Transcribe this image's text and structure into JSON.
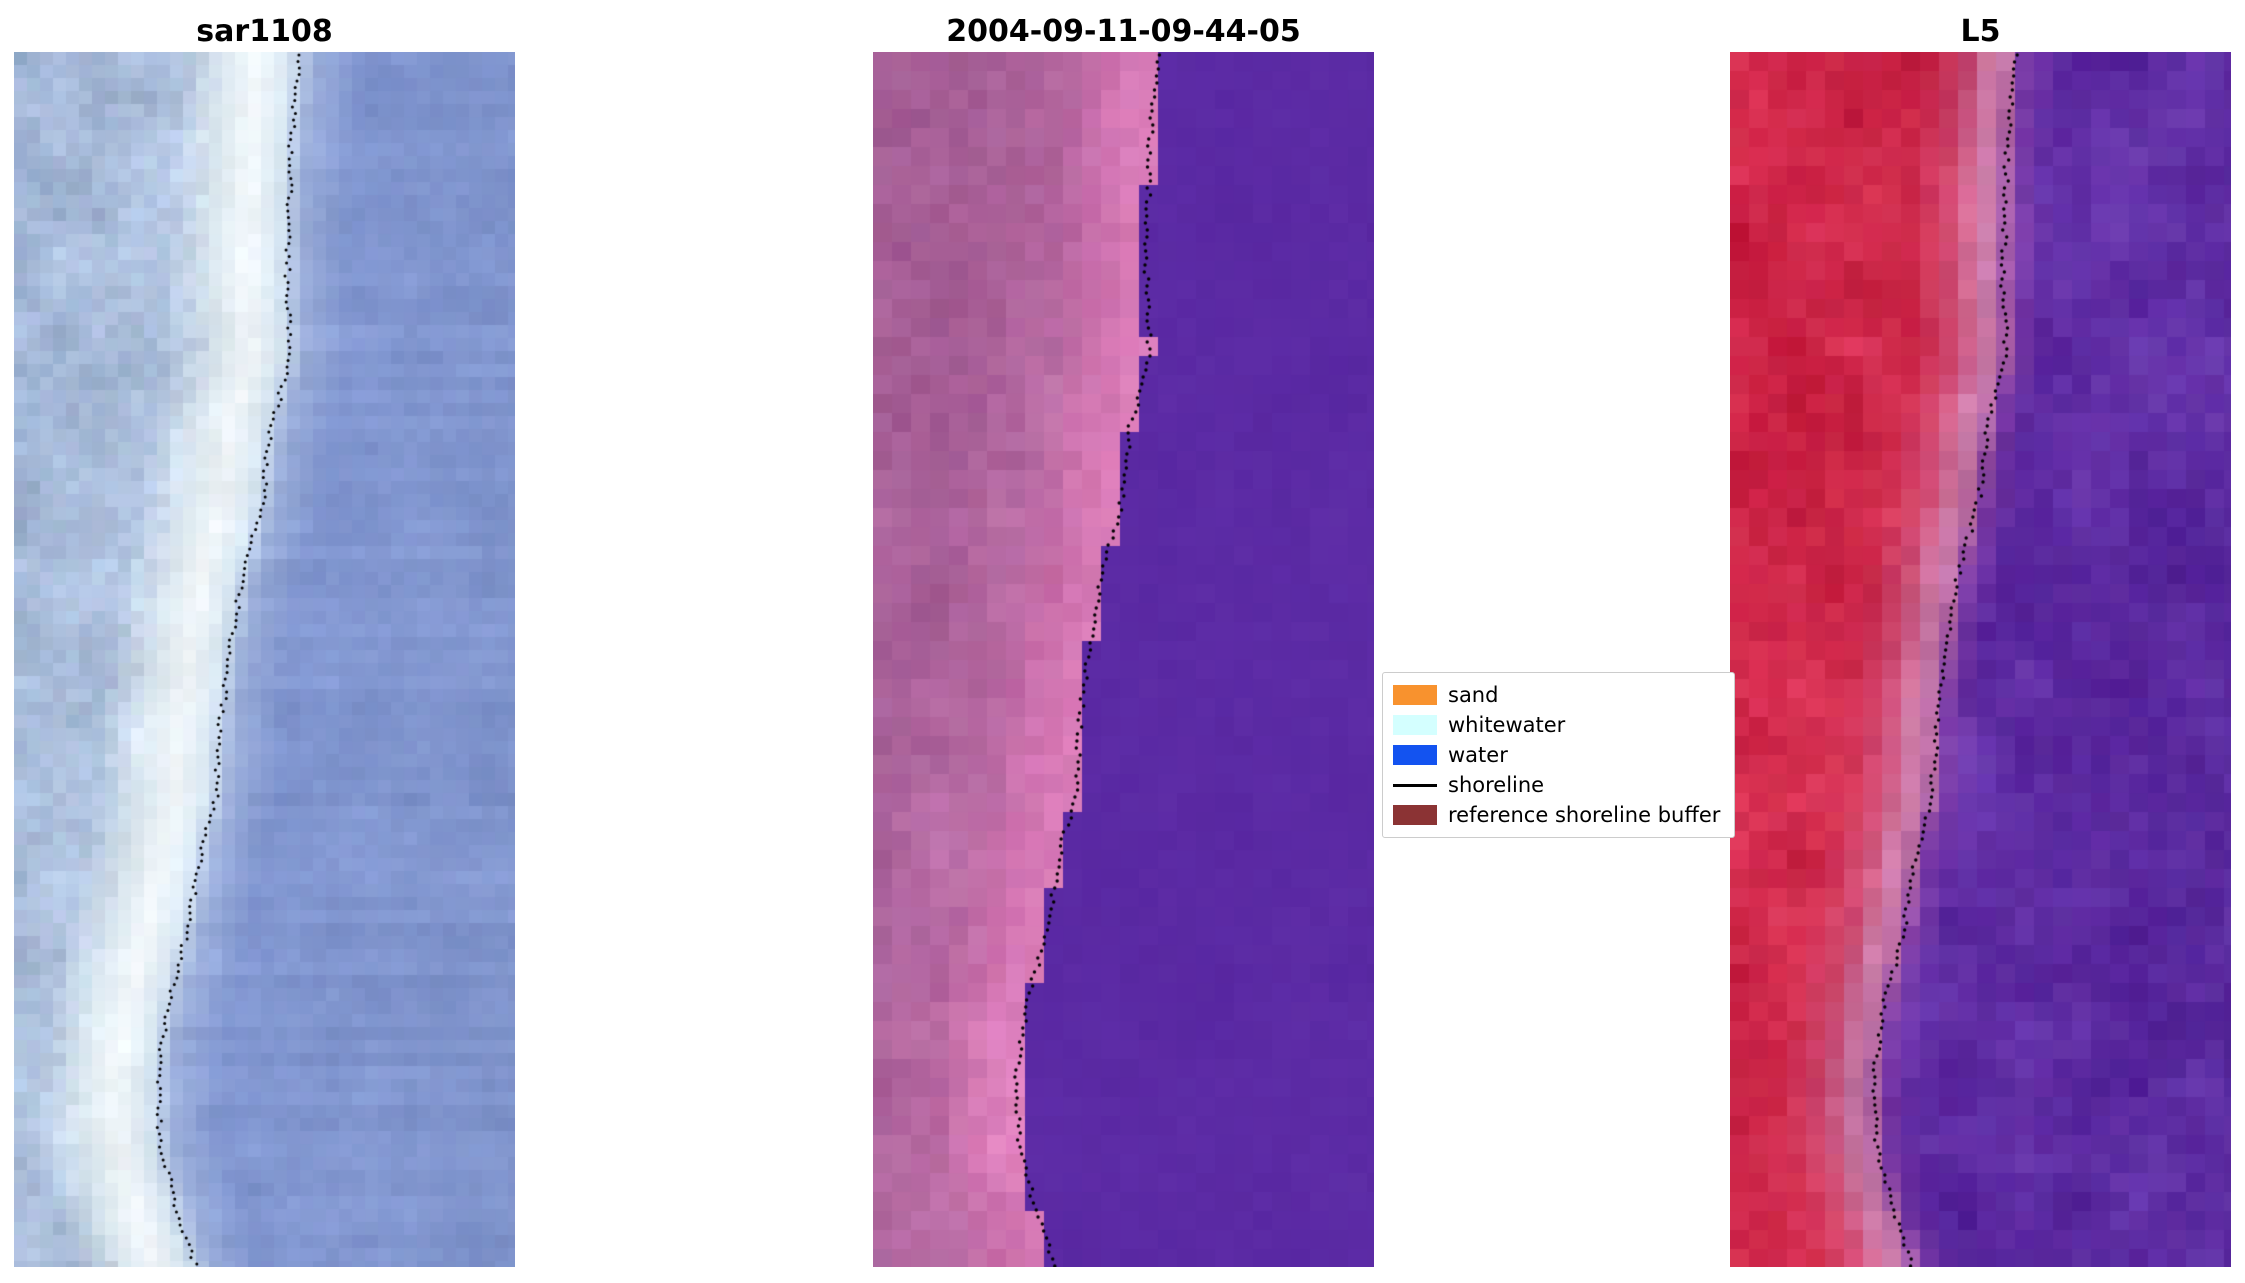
{
  "figure": {
    "background": "#ffffff"
  },
  "panels": [
    {
      "title": "sar1108",
      "seed": 7,
      "cell": 13,
      "stops": [
        [
          -1,
          "#9bb0d2"
        ],
        [
          -0.5,
          "#a4b8d8"
        ],
        [
          -0.24,
          "#afc2de"
        ],
        [
          -0.14,
          "#dde9f0"
        ],
        [
          -0.08,
          "#f2f7fa"
        ],
        [
          -0.02,
          "#d8e7f2"
        ],
        [
          0.03,
          "#9cafdb"
        ],
        [
          0.12,
          "#8297d1"
        ],
        [
          1,
          "#7e92c9"
        ]
      ],
      "bandCalm": [
        -0.16,
        0.0
      ],
      "noise": {
        "landFine": 9,
        "landBlotch": 15,
        "waterFine": 4,
        "waterBlotch": 6,
        "rowStreak": 5
      },
      "dot": {
        "step": 6.5,
        "r": 1.5
      }
    },
    {
      "title": "2004-09-11-09-44-05",
      "seed": 21,
      "cell": 19,
      "hardWaterColor": "#5b2aa4",
      "stops": [
        [
          -1,
          "#9f5e92"
        ],
        [
          -0.6,
          "#a66097"
        ],
        [
          -0.35,
          "#ab639b"
        ],
        [
          -0.18,
          "#b96ca4"
        ],
        [
          -0.1,
          "#cf74b0"
        ],
        [
          -0.03,
          "#d97cb8"
        ],
        [
          0,
          "#dc7eba"
        ]
      ],
      "noise": {
        "landFine": 7,
        "landBlotch": 10,
        "waterFine": 2,
        "waterBlotch": 2,
        "rowStreak": 0
      },
      "dot": {
        "step": 7,
        "r": 1.7
      }
    },
    {
      "title": "L5",
      "seed": 42,
      "cell": 19,
      "stops": [
        [
          -1,
          "#c92043"
        ],
        [
          -0.45,
          "#cd2446"
        ],
        [
          -0.18,
          "#cf2b4d"
        ],
        [
          -0.1,
          "#cd4a72"
        ],
        [
          -0.05,
          "#cf7da8"
        ],
        [
          -0.01,
          "#bd6fa8"
        ],
        [
          0.02,
          "#7a3aa6"
        ],
        [
          0.08,
          "#5e2ba2"
        ],
        [
          1,
          "#582a9e"
        ]
      ],
      "noise": {
        "landFine": 8,
        "landBlotch": 13,
        "waterFine": 7,
        "waterBlotch": 13,
        "rowStreak": 0
      },
      "dot": {
        "step": 7,
        "r": 1.7
      }
    }
  ],
  "chart_data": {
    "type": "heatmap",
    "subtype": "satellite-shoreline-detection-triptych",
    "panel_titles": [
      "sar1108",
      "2004-09-11-09-44-05",
      "L5"
    ],
    "legend": {
      "position": "center-right",
      "entries": [
        {
          "label": "sand",
          "color": "#f8922e",
          "marker": "box"
        },
        {
          "label": "whitewater",
          "color": "#d4ffff",
          "marker": "box"
        },
        {
          "label": "water",
          "color": "#1353f0",
          "marker": "box"
        },
        {
          "label": "shoreline",
          "color": "#000000",
          "marker": "line"
        },
        {
          "label": "reference shoreline buffer",
          "color": "#8b3334",
          "marker": "box"
        }
      ]
    },
    "shoreline_curve_xfrac_by_yfrac": [
      [
        0,
        0.57
      ],
      [
        0.08,
        0.552
      ],
      [
        0.2,
        0.545
      ],
      [
        0.25,
        0.553
      ],
      [
        0.31,
        0.512
      ],
      [
        0.37,
        0.496
      ],
      [
        0.43,
        0.456
      ],
      [
        0.49,
        0.432
      ],
      [
        0.55,
        0.413
      ],
      [
        0.61,
        0.404
      ],
      [
        0.66,
        0.372
      ],
      [
        0.72,
        0.348
      ],
      [
        0.78,
        0.31
      ],
      [
        0.84,
        0.287
      ],
      [
        0.9,
        0.292
      ],
      [
        0.96,
        0.33
      ],
      [
        1,
        0.363
      ]
    ]
  }
}
